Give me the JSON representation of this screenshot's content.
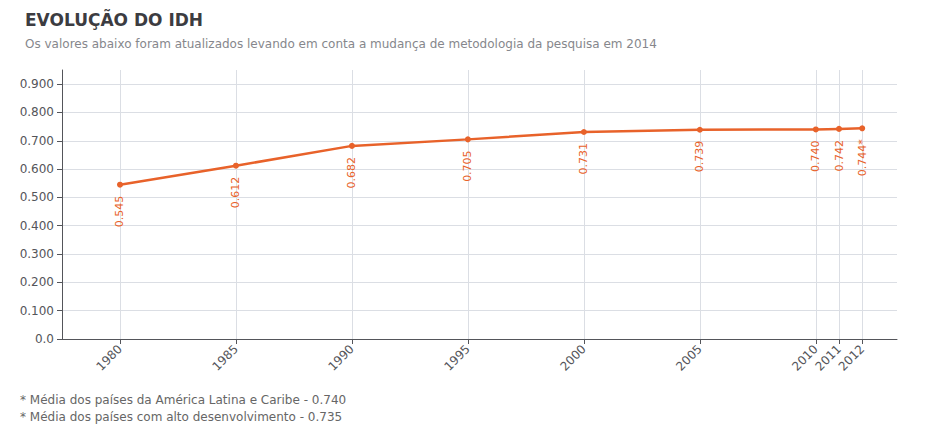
{
  "chart_data": {
    "type": "line",
    "title": "EVOLUÇÃO DO IDH",
    "subtitle": "Os valores abaixo foram atualizados levando em conta a mudança de metodologia da pesquisa em 2014",
    "annotations": [
      "* Média dos países da América Latina e Caribe - 0.740",
      "* Média dos países com alto desenvolvimento - 0.735"
    ],
    "x": [
      1980,
      1985,
      1990,
      1995,
      2000,
      2005,
      2010,
      2011,
      2012
    ],
    "values": [
      0.545,
      0.612,
      0.682,
      0.705,
      0.731,
      0.739,
      0.74,
      0.742,
      0.744
    ],
    "value_labels": [
      "0.545",
      "0.612",
      "0.682",
      "0.705",
      "0.731",
      "0.739",
      "0.740",
      "0.742",
      "0.744*"
    ],
    "data_labels": true,
    "color": "#E8622A",
    "xlim": [
      1977.5,
      2013.5
    ],
    "xticks": [
      1980,
      1985,
      1990,
      1995,
      2000,
      2005,
      2010,
      2011,
      2012
    ],
    "ylim": [
      0.0,
      0.95
    ],
    "yticks": [
      {
        "value": 0.0,
        "label": "0.0"
      },
      {
        "value": 0.1,
        "label": "0.100"
      },
      {
        "value": 0.2,
        "label": "0.200"
      },
      {
        "value": 0.3,
        "label": "0.300"
      },
      {
        "value": 0.4,
        "label": "0.400"
      },
      {
        "value": 0.5,
        "label": "0.500"
      },
      {
        "value": 0.6,
        "label": "0.600"
      },
      {
        "value": 0.7,
        "label": "0.700"
      },
      {
        "value": 0.8,
        "label": "0.800"
      },
      {
        "value": 0.9,
        "label": "0.900"
      }
    ],
    "grid": true
  }
}
